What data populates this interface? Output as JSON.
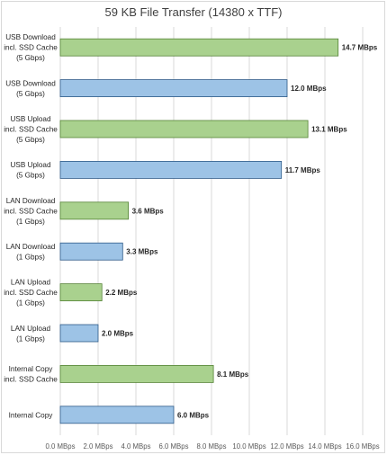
{
  "chart_data": {
    "type": "bar",
    "orientation": "horizontal",
    "title": "59 KB File Transfer (14380 x TTF)",
    "xlabel": "",
    "ylabel": "",
    "xlim": [
      0,
      16
    ],
    "xticks": [
      "0.0 MBps",
      "2.0 MBps",
      "4.0 MBps",
      "6.0 MBps",
      "8.0 MBps",
      "10.0 MBps",
      "12.0 MBps",
      "14.0 MBps",
      "16.0 MBps"
    ],
    "grid": true,
    "legend": "none",
    "unit": "MBps",
    "colors": {
      "green": "#a9d18e",
      "green_edge": "#548235",
      "blue": "#9dc3e6",
      "blue_edge": "#2e5a88"
    },
    "bars": [
      {
        "label": [
          "USB Download",
          "incl. SSD Cache",
          "(5 Gbps)"
        ],
        "value": 14.7,
        "value_label": "14.7 MBps",
        "color": "green"
      },
      {
        "label": [
          "USB Download",
          "(5 Gbps)"
        ],
        "value": 12.0,
        "value_label": "12.0 MBps",
        "color": "blue"
      },
      {
        "label": [
          "USB Upload",
          "incl. SSD Cache",
          "(5 Gbps)"
        ],
        "value": 13.1,
        "value_label": "13.1 MBps",
        "color": "green"
      },
      {
        "label": [
          "USB Upload",
          "(5 Gbps)"
        ],
        "value": 11.7,
        "value_label": "11.7 MBps",
        "color": "blue"
      },
      {
        "label": [
          "LAN Download",
          "incl. SSD Cache",
          "(1 Gbps)"
        ],
        "value": 3.6,
        "value_label": "3.6 MBps",
        "color": "green"
      },
      {
        "label": [
          "LAN Download",
          "(1 Gbps)"
        ],
        "value": 3.3,
        "value_label": "3.3 MBps",
        "color": "blue"
      },
      {
        "label": [
          "LAN Upload",
          "incl. SSD Cache",
          "(1 Gbps)"
        ],
        "value": 2.2,
        "value_label": "2.2 MBps",
        "color": "green"
      },
      {
        "label": [
          "LAN Upload",
          "(1 Gbps)"
        ],
        "value": 2.0,
        "value_label": "2.0 MBps",
        "color": "blue"
      },
      {
        "label": [
          "Internal Copy",
          "incl. SSD Cache"
        ],
        "value": 8.1,
        "value_label": "8.1 MBps",
        "color": "green"
      },
      {
        "label": [
          "Internal Copy"
        ],
        "value": 6.0,
        "value_label": "6.0 MBps",
        "color": "blue"
      }
    ]
  }
}
